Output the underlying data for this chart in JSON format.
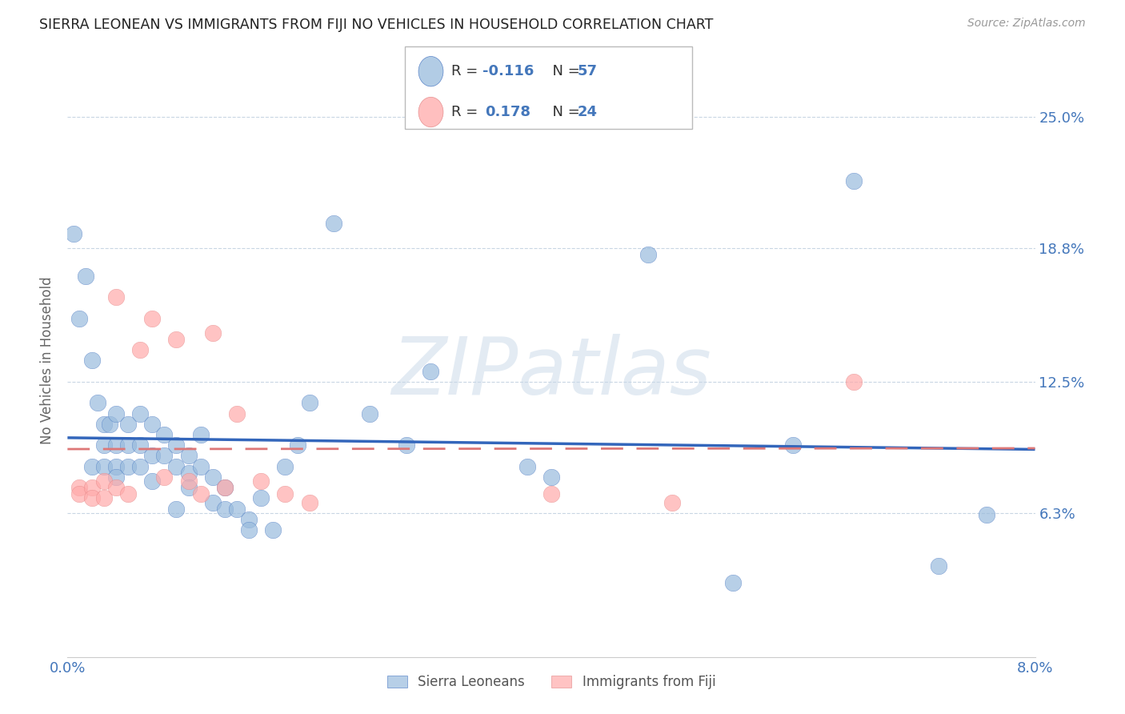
{
  "title": "SIERRA LEONEAN VS IMMIGRANTS FROM FIJI NO VEHICLES IN HOUSEHOLD CORRELATION CHART",
  "source": "Source: ZipAtlas.com",
  "ylabel": "No Vehicles in Household",
  "ytick_labels": [
    "25.0%",
    "18.8%",
    "12.5%",
    "6.3%"
  ],
  "ytick_values": [
    0.25,
    0.188,
    0.125,
    0.063
  ],
  "xmin": 0.0,
  "xmax": 0.08,
  "ymin": -0.005,
  "ymax": 0.275,
  "color_blue": "#99BBDD",
  "color_pink": "#FFAAAA",
  "color_blue_dark": "#3366BB",
  "color_pink_dark": "#DD7777",
  "color_text_blue": "#4477BB",
  "color_grid": "#BBCCDD",
  "watermark_color": "#C8D8E8",
  "sierra_x": [
    0.0005,
    0.001,
    0.0015,
    0.002,
    0.002,
    0.0025,
    0.003,
    0.003,
    0.003,
    0.0035,
    0.004,
    0.004,
    0.004,
    0.004,
    0.005,
    0.005,
    0.005,
    0.006,
    0.006,
    0.006,
    0.007,
    0.007,
    0.007,
    0.008,
    0.008,
    0.009,
    0.009,
    0.009,
    0.01,
    0.01,
    0.01,
    0.011,
    0.011,
    0.012,
    0.012,
    0.013,
    0.013,
    0.014,
    0.015,
    0.015,
    0.016,
    0.017,
    0.018,
    0.019,
    0.02,
    0.022,
    0.025,
    0.028,
    0.03,
    0.038,
    0.04,
    0.048,
    0.055,
    0.06,
    0.065,
    0.072,
    0.076
  ],
  "sierra_y": [
    0.195,
    0.155,
    0.175,
    0.135,
    0.085,
    0.115,
    0.105,
    0.095,
    0.085,
    0.105,
    0.11,
    0.095,
    0.085,
    0.08,
    0.105,
    0.095,
    0.085,
    0.11,
    0.095,
    0.085,
    0.105,
    0.09,
    0.078,
    0.1,
    0.09,
    0.095,
    0.085,
    0.065,
    0.09,
    0.082,
    0.075,
    0.085,
    0.1,
    0.08,
    0.068,
    0.075,
    0.065,
    0.065,
    0.06,
    0.055,
    0.07,
    0.055,
    0.085,
    0.095,
    0.115,
    0.2,
    0.11,
    0.095,
    0.13,
    0.085,
    0.08,
    0.185,
    0.03,
    0.095,
    0.22,
    0.038,
    0.062
  ],
  "fiji_x": [
    0.001,
    0.001,
    0.002,
    0.002,
    0.003,
    0.003,
    0.004,
    0.004,
    0.005,
    0.006,
    0.007,
    0.008,
    0.009,
    0.01,
    0.011,
    0.012,
    0.013,
    0.014,
    0.016,
    0.018,
    0.02,
    0.04,
    0.05,
    0.065
  ],
  "fiji_y": [
    0.075,
    0.072,
    0.075,
    0.07,
    0.078,
    0.07,
    0.165,
    0.075,
    0.072,
    0.14,
    0.155,
    0.08,
    0.145,
    0.078,
    0.072,
    0.148,
    0.075,
    0.11,
    0.078,
    0.072,
    0.068,
    0.072,
    0.068,
    0.125
  ],
  "watermark": "ZIPatlas",
  "legend_r1_prefix": "R = ",
  "legend_r1_val": "-0.116",
  "legend_n1_label": "N = ",
  "legend_n1_val": "57",
  "legend_r2_prefix": "R =  ",
  "legend_r2_val": "0.178",
  "legend_n2_label": "N = ",
  "legend_n2_val": "24"
}
